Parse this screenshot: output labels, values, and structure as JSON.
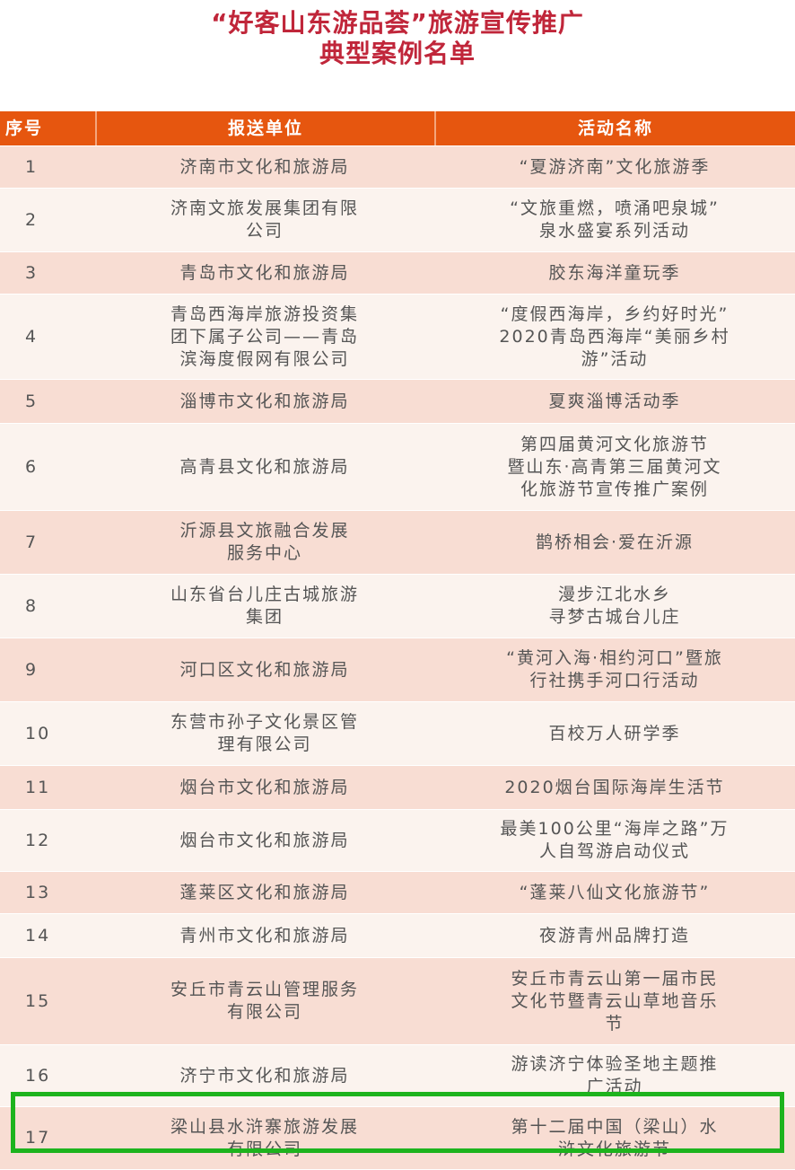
{
  "title": {
    "line1": "“好客山东游品荟”旅游宣传推广",
    "line2": "典型案例名单"
  },
  "table": {
    "headers": [
      "序号",
      "报送单位",
      "活动名称"
    ],
    "rows": [
      {
        "no": "1",
        "unit": [
          "济南市文化和旅游局"
        ],
        "activity": [
          "“夏游济南”文化旅游季"
        ]
      },
      {
        "no": "2",
        "unit": [
          "济南文旅发展集团有限",
          "公司"
        ],
        "activity": [
          "“文旅重燃，喷涌吧泉城”",
          "泉水盛宴系列活动"
        ]
      },
      {
        "no": "3",
        "unit": [
          "青岛市文化和旅游局"
        ],
        "activity": [
          "胶东海洋童玩季"
        ]
      },
      {
        "no": "4",
        "unit": [
          "青岛西海岸旅游投资集",
          "团下属子公司——青岛",
          "滨海度假网有限公司"
        ],
        "activity": [
          "“度假西海岸，乡约好时光”",
          "2020青岛西海岸“美丽乡村",
          "游”活动"
        ]
      },
      {
        "no": "5",
        "unit": [
          "淄博市文化和旅游局"
        ],
        "activity": [
          "夏爽淄博活动季"
        ]
      },
      {
        "no": "6",
        "unit": [
          "高青县文化和旅游局"
        ],
        "activity": [
          "第四届黄河文化旅游节",
          "暨山东·高青第三届黄河文",
          "化旅游节宣传推广案例"
        ]
      },
      {
        "no": "7",
        "unit": [
          "沂源县文旅融合发展",
          "服务中心"
        ],
        "activity": [
          "鹊桥相会·爱在沂源"
        ]
      },
      {
        "no": "8",
        "unit": [
          "山东省台儿庄古城旅游",
          "集团"
        ],
        "activity": [
          "漫步江北水乡",
          "寻梦古城台儿庄"
        ]
      },
      {
        "no": "9",
        "unit": [
          "河口区文化和旅游局"
        ],
        "activity": [
          "“黄河入海·相约河口”暨旅",
          "行社携手河口行活动"
        ]
      },
      {
        "no": "10",
        "unit": [
          "东营市孙子文化景区管",
          "理有限公司"
        ],
        "activity": [
          "百校万人研学季"
        ]
      },
      {
        "no": "11",
        "unit": [
          "烟台市文化和旅游局"
        ],
        "activity": [
          "2020烟台国际海岸生活节"
        ]
      },
      {
        "no": "12",
        "unit": [
          "烟台市文化和旅游局"
        ],
        "activity": [
          "最美100公里“海岸之路”万",
          "人自驾游启动仪式"
        ]
      },
      {
        "no": "13",
        "unit": [
          "蓬莱区文化和旅游局"
        ],
        "activity": [
          "“蓬莱八仙文化旅游节”"
        ]
      },
      {
        "no": "14",
        "unit": [
          "青州市文化和旅游局"
        ],
        "activity": [
          "夜游青州品牌打造"
        ]
      },
      {
        "no": "15",
        "unit": [
          "安丘市青云山管理服务",
          "有限公司"
        ],
        "activity": [
          "安丘市青云山第一届市民",
          "文化节暨青云山草地音乐",
          "节"
        ]
      },
      {
        "no": "16",
        "unit": [
          "济宁市文化和旅游局"
        ],
        "activity": [
          "游读济宁体验圣地主题推",
          "广活动"
        ]
      },
      {
        "no": "17",
        "unit": [
          "梁山县水浒寨旅游发展",
          "有限公司"
        ],
        "activity": [
          "第十二届中国（梁山）水",
          "浒文化旅游节"
        ]
      }
    ]
  },
  "colors": {
    "title": "#c0263a",
    "header": "#e6560f",
    "row_odd": "#f8ddd3",
    "row_even": "#fbf3ee",
    "highlight": "#1db31d"
  },
  "highlighted_row": "17"
}
